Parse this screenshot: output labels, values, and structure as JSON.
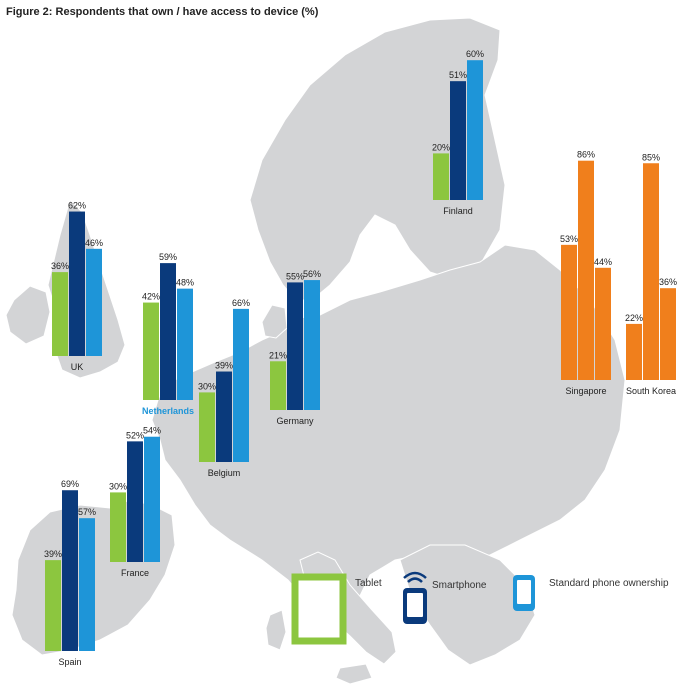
{
  "title": "Figure 2: Respondents that own / have access to device (%)",
  "colors": {
    "tablet": "#8cc63f",
    "smartphone": "#0a3a7c",
    "standard": "#1e95d8",
    "asia": "#f07f1c",
    "map": "#d3d4d6",
    "map_border": "#ffffff"
  },
  "legend": [
    {
      "key": "tablet",
      "label": "Tablet",
      "icon": "tablet-icon"
    },
    {
      "key": "smartphone",
      "label": "Smartphone",
      "icon": "smartphone-icon"
    },
    {
      "key": "standard",
      "label": "Standard phone ownership",
      "icon": "standard-phone-icon"
    }
  ],
  "chart_data": {
    "type": "bar",
    "title": "Figure 2: Respondents that own / have access to device (%)",
    "unit": "%",
    "series_names": [
      "Tablet",
      "Smartphone",
      "Standard phone ownership"
    ],
    "background": "map of Europe",
    "groups": [
      {
        "country": "UK",
        "values": [
          36,
          62,
          46
        ],
        "labels": [
          "36%",
          "62%",
          "46%"
        ]
      },
      {
        "country": "Netherlands",
        "values": [
          42,
          59,
          48
        ],
        "labels": [
          "42%",
          "59%",
          "48%"
        ],
        "highlight": true
      },
      {
        "country": "Belgium",
        "values": [
          30,
          39,
          66
        ],
        "labels": [
          "30%",
          "39%",
          "66%"
        ]
      },
      {
        "country": "Germany",
        "values": [
          21,
          55,
          56
        ],
        "labels": [
          "21%",
          "55%",
          "56%"
        ]
      },
      {
        "country": "France",
        "values": [
          30,
          52,
          54
        ],
        "labels": [
          "30%",
          "52%",
          "54%"
        ]
      },
      {
        "country": "Spain",
        "values": [
          39,
          69,
          57
        ],
        "labels": [
          "39%",
          "69%",
          "57%"
        ]
      },
      {
        "country": "Finland",
        "values": [
          20,
          51,
          60
        ],
        "labels": [
          "20%",
          "51%",
          "60%"
        ]
      },
      {
        "country": "Singapore",
        "values": [
          53,
          86,
          44
        ],
        "labels": [
          "53%",
          "86%",
          "44%"
        ],
        "region_color": "asia"
      },
      {
        "country": "South Korea",
        "values": [
          22,
          85,
          36
        ],
        "labels": [
          "22%",
          "85%",
          "36%"
        ],
        "region_color": "asia"
      }
    ]
  }
}
